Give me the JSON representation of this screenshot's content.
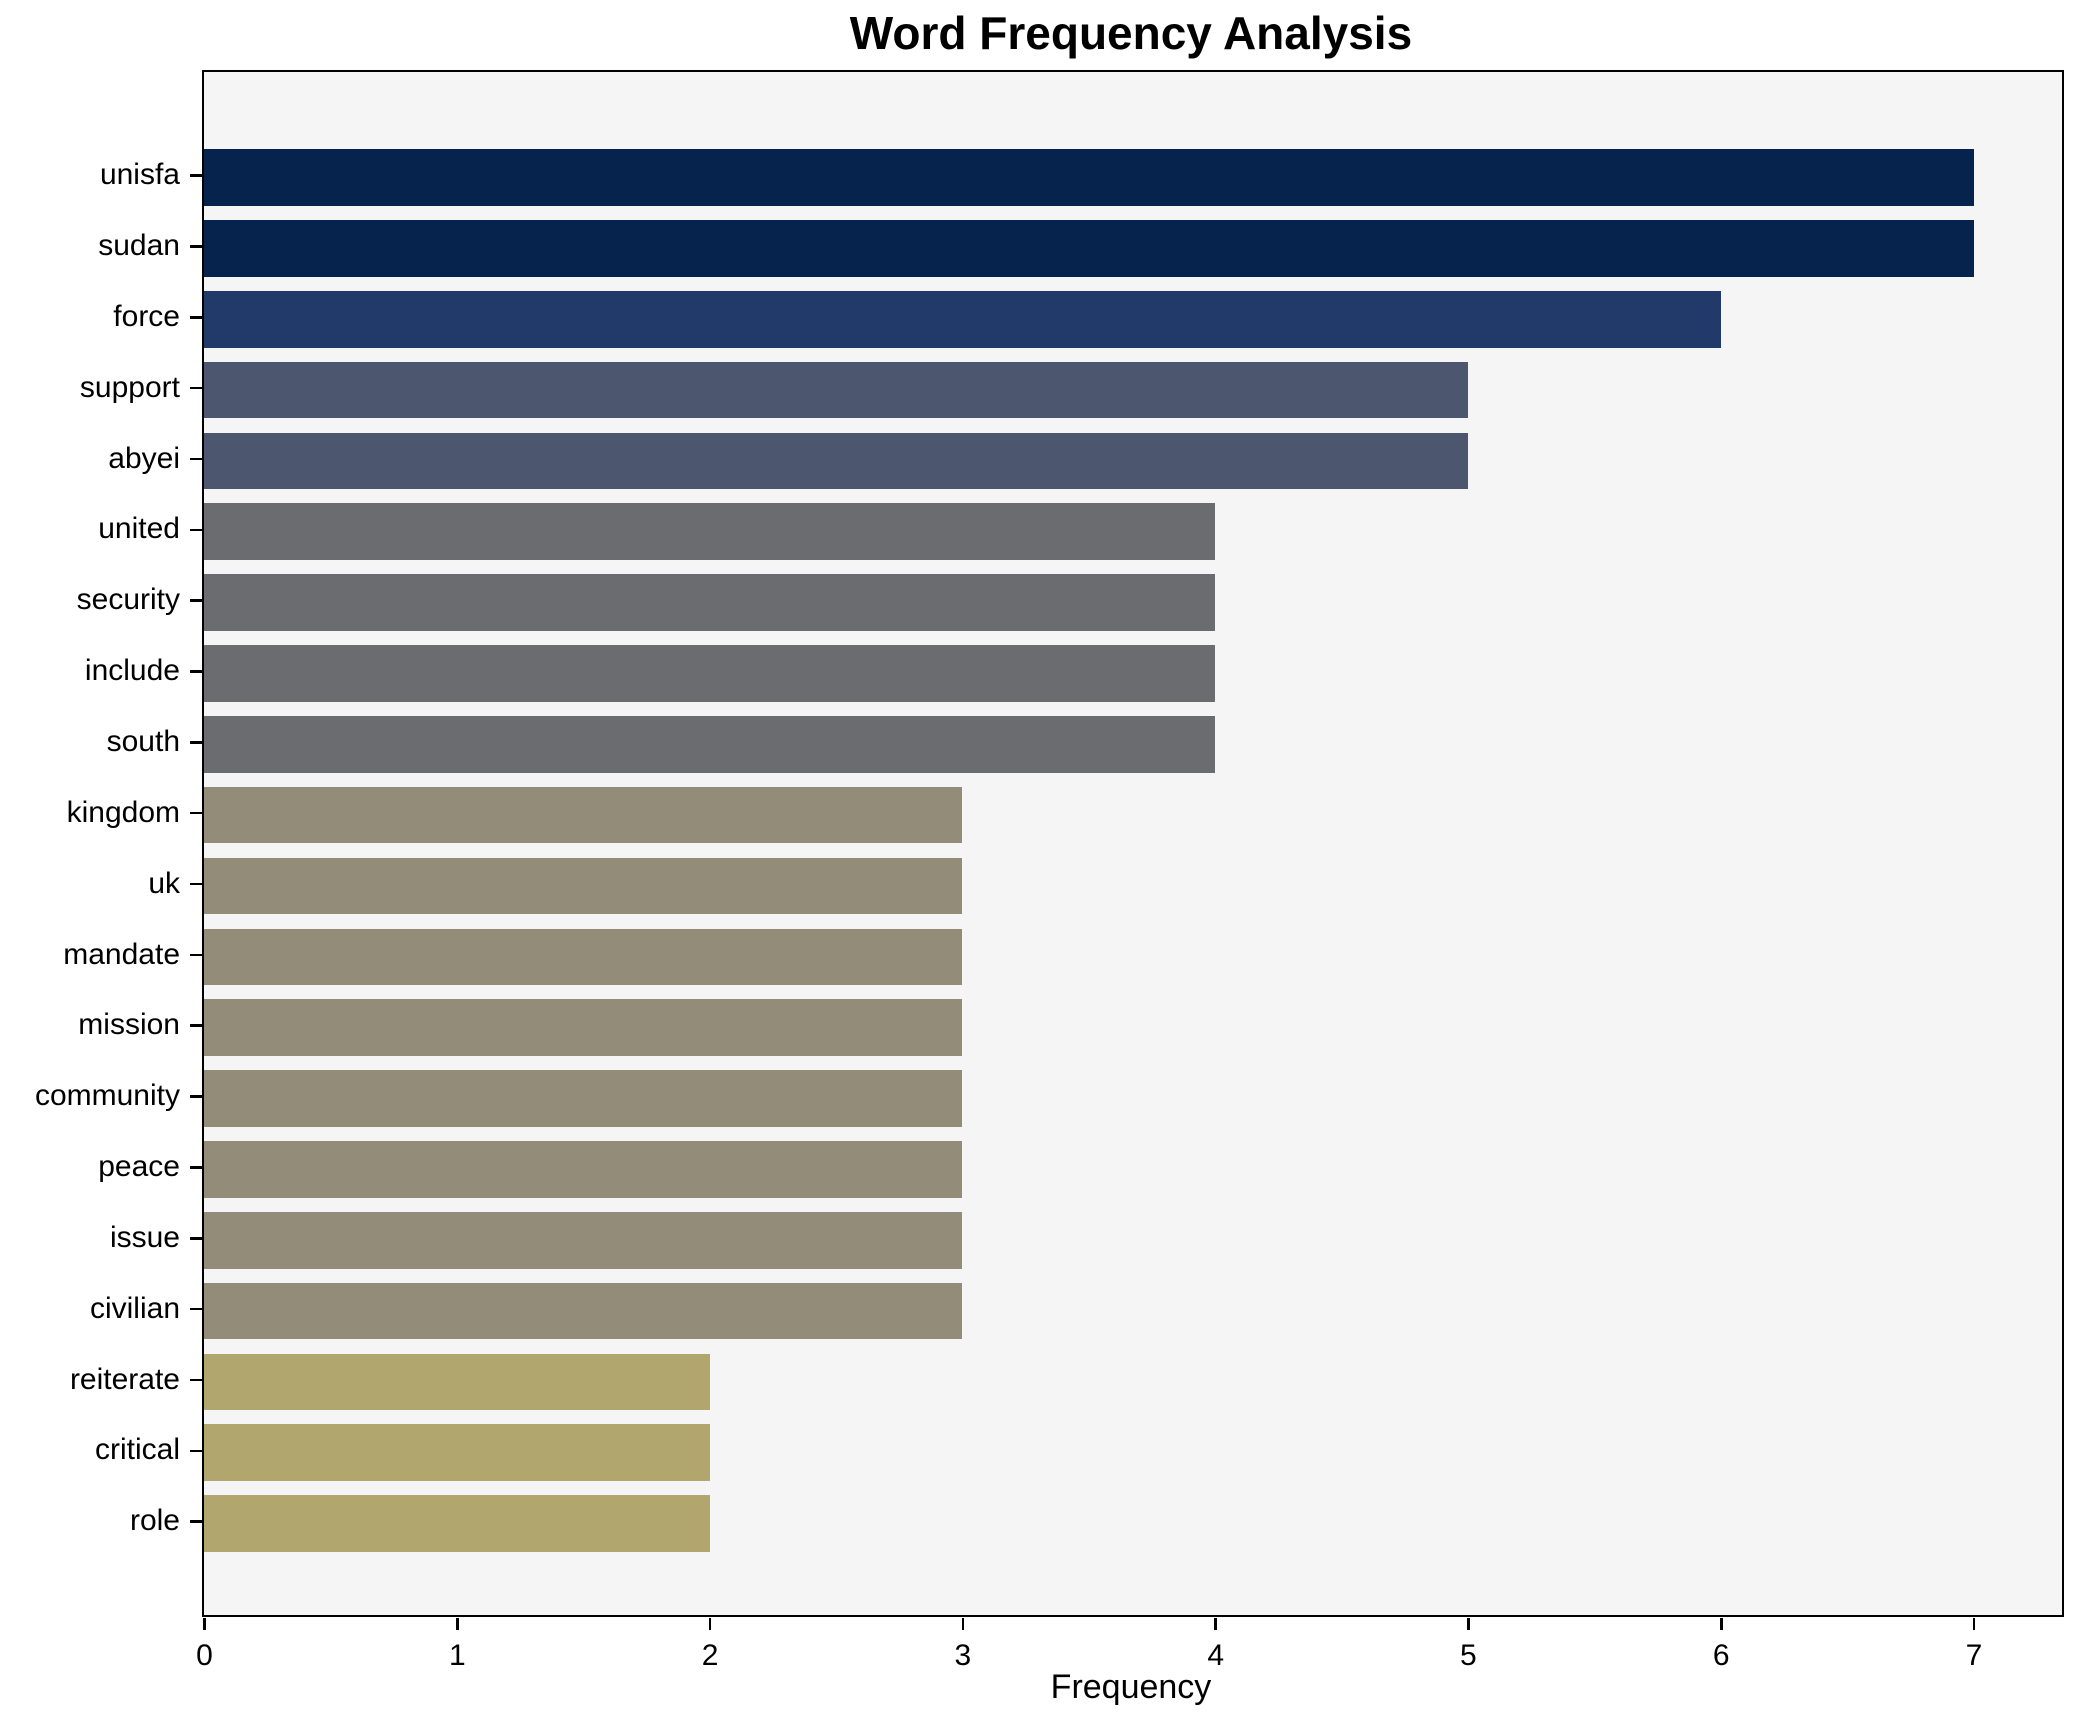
{
  "chart_data": {
    "type": "bar",
    "orientation": "horizontal",
    "title": "Word Frequency Analysis",
    "xlabel": "Frequency",
    "ylabel": "",
    "categories": [
      "unisfa",
      "sudan",
      "force",
      "support",
      "abyei",
      "united",
      "security",
      "include",
      "south",
      "kingdom",
      "uk",
      "mandate",
      "mission",
      "community",
      "peace",
      "issue",
      "civilian",
      "reiterate",
      "critical",
      "role"
    ],
    "values": [
      7,
      7,
      6,
      5,
      5,
      4,
      4,
      4,
      4,
      3,
      3,
      3,
      3,
      3,
      3,
      3,
      3,
      2,
      2,
      2
    ],
    "bar_colors": [
      "#06234d",
      "#06234d",
      "#223a69",
      "#4c566f",
      "#4c566f",
      "#6b6c70",
      "#6b6c70",
      "#6b6c70",
      "#6b6c70",
      "#928c79",
      "#928c79",
      "#928c79",
      "#928c79",
      "#928c79",
      "#928c79",
      "#928c79",
      "#928c79",
      "#b1a76e",
      "#b1a76e",
      "#b1a76e"
    ],
    "xlim": [
      0,
      7.35
    ],
    "xticks": [
      "0",
      "1",
      "2",
      "3",
      "4",
      "5",
      "6",
      "7"
    ],
    "grid": false,
    "legend": false,
    "plot_background": "#f5f5f6",
    "figure_background": "#ffffff",
    "spine_color": "#000000"
  }
}
